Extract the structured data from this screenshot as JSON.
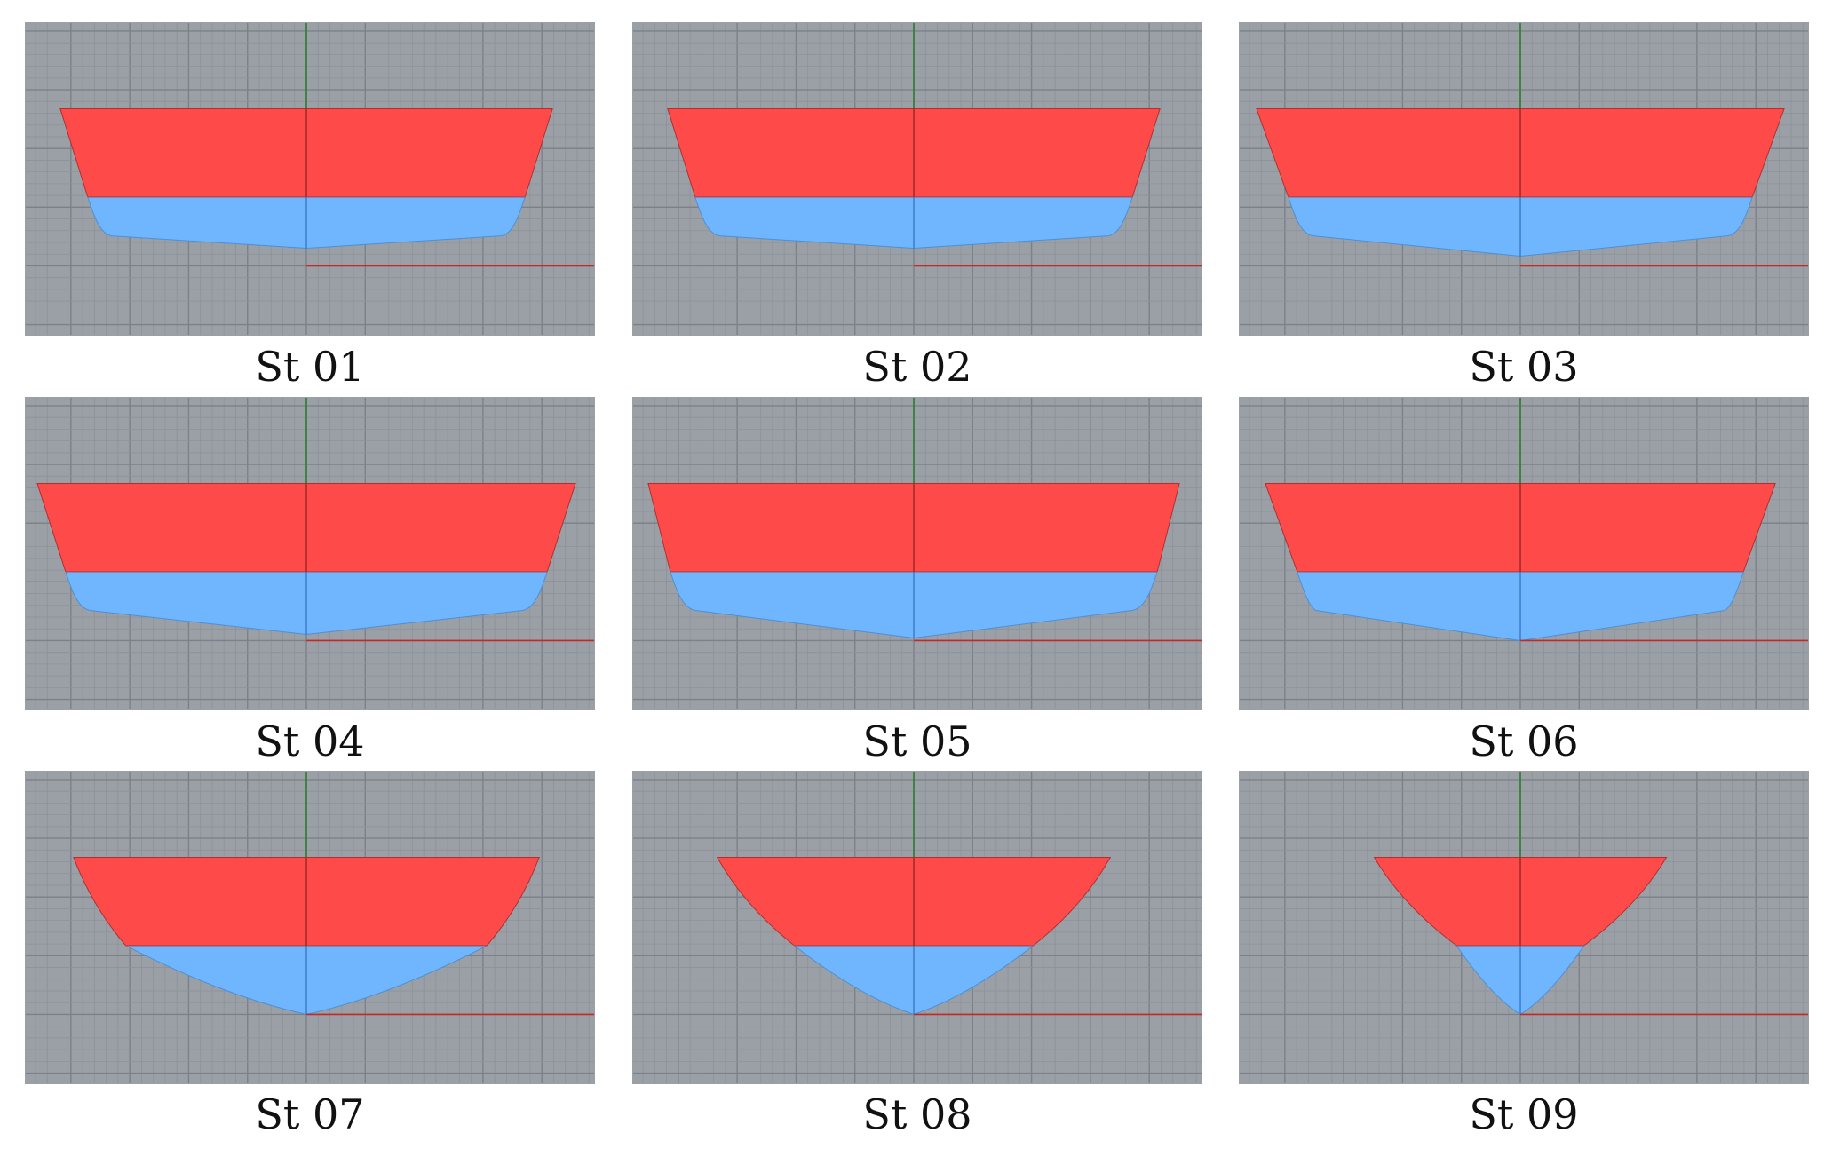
{
  "colors": {
    "grid_background": "#9aa0a6",
    "grid_minor": "#8c9298",
    "grid_major": "#7b8187",
    "above_waterline": "#ff4a4a",
    "below_waterline": "#6fb6ff",
    "centerline": "#2e7d32",
    "baseline": "#c62828",
    "hull_outline": "#b03030"
  },
  "stations": [
    {
      "label": "St 01",
      "deck_half_beam": 278,
      "wl_half_beam": 247,
      "keel_y": 255,
      "bilge": 0.75
    },
    {
      "label": "St 02",
      "deck_half_beam": 278,
      "wl_half_beam": 247,
      "keel_y": 255,
      "bilge": 0.78
    },
    {
      "label": "St 03",
      "deck_half_beam": 298,
      "wl_half_beam": 262,
      "keel_y": 264,
      "bilge": 0.8
    },
    {
      "label": "St 04",
      "deck_half_beam": 304,
      "wl_half_beam": 272,
      "keel_y": 268,
      "bilge": 0.82
    },
    {
      "label": "St 05",
      "deck_half_beam": 300,
      "wl_half_beam": 275,
      "keel_y": 272,
      "bilge": 0.85
    },
    {
      "label": "St 06",
      "deck_half_beam": 288,
      "wl_half_beam": 252,
      "keel_y": 275,
      "bilge": 0.55
    },
    {
      "label": "St 07",
      "deck_half_beam": 263,
      "wl_half_beam": 204,
      "keel_y": 275,
      "bilge": 0.3
    },
    {
      "label": "St 08",
      "deck_half_beam": 222,
      "wl_half_beam": 135,
      "keel_y": 275,
      "bilge": 0.22
    },
    {
      "label": "St 09",
      "deck_half_beam": 165,
      "wl_half_beam": 72,
      "keel_y": 275,
      "bilge": 0.12
    }
  ]
}
